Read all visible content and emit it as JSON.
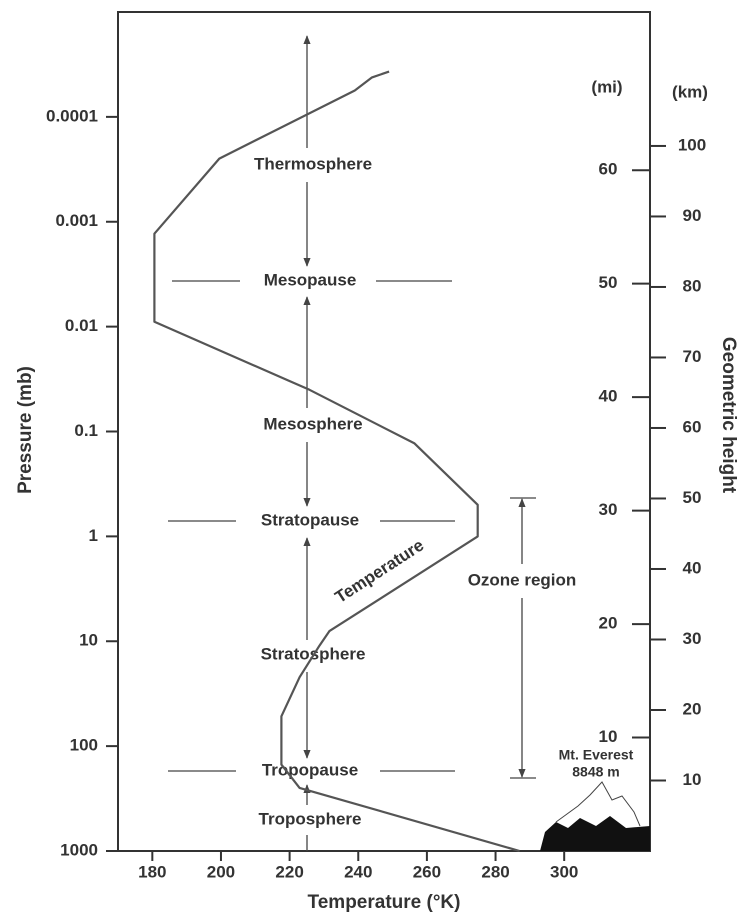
{
  "chart_data": {
    "type": "line",
    "xlabel": "Temperature (°K)",
    "ylabel": "Pressure (mb)",
    "x": [
      249,
      244,
      239,
      199.5,
      180.6,
      180.6,
      225.8,
      256.4,
      274.8,
      274.8,
      231.6,
      228.7,
      222.9,
      217.6,
      217.6,
      222.9,
      287
    ],
    "series": [
      {
        "name": "Temperature",
        "color": "#555555",
        "values": [
          3.7e-05,
          4.2e-05,
          5.6e-05,
          0.00025,
          0.0013,
          0.009,
          0.04,
          0.13,
          0.5,
          1,
          8,
          11,
          22,
          52,
          150,
          250,
          1000
        ]
      }
    ],
    "xlim": [
      170,
      325
    ],
    "xticks": [
      180,
      200,
      220,
      240,
      260,
      280,
      300
    ],
    "ylim": [
      1000,
      1e-05
    ],
    "ylog": true,
    "yticks": [
      {
        "value": 0.0001,
        "label": "0.0001"
      },
      {
        "value": 0.001,
        "label": "0.001"
      },
      {
        "value": 0.01,
        "label": "0.01"
      },
      {
        "value": 0.1,
        "label": "0.1"
      },
      1,
      10,
      100,
      1000
    ],
    "height_axis": {
      "title": "Geometric height",
      "km_label": "(km)",
      "mi_label": "(mi)",
      "lim": [
        0,
        119
      ],
      "km_ticks": [
        10,
        20,
        30,
        40,
        50,
        60,
        70,
        80,
        90,
        100
      ],
      "mi_ticks": [
        10,
        20,
        30,
        40,
        50,
        60
      ]
    },
    "annotations": [
      "Thermosphere",
      "Mesopause",
      "Mesosphere",
      "Stratopause",
      "Stratosphere",
      "Tropopause",
      "Troposphere",
      "Ozone region",
      "Mt. Everest",
      "8848 m"
    ]
  }
}
